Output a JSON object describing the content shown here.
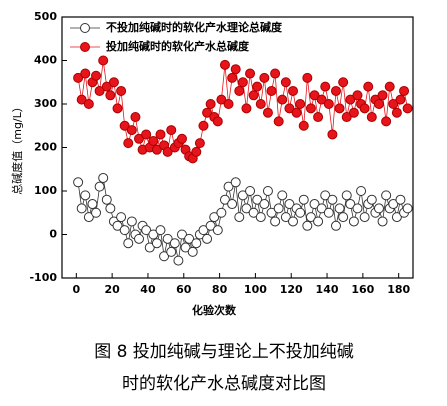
{
  "chart_data": {
    "type": "line",
    "xlabel": "化验次数",
    "ylabel": "总碱度值（mg/L）",
    "caption": [
      "图 8  投加纯碱与理论上不投加纯碱",
      "时的软化产水总碱度对比图"
    ],
    "legend": "upper left",
    "x": [
      1,
      3,
      5,
      7,
      9,
      11,
      13,
      15,
      17,
      19,
      21,
      23,
      25,
      27,
      29,
      31,
      33,
      35,
      37,
      39,
      41,
      43,
      45,
      47,
      49,
      51,
      53,
      55,
      57,
      59,
      61,
      63,
      65,
      67,
      69,
      71,
      73,
      75,
      77,
      79,
      81,
      83,
      85,
      87,
      89,
      91,
      93,
      95,
      97,
      99,
      101,
      103,
      105,
      107,
      109,
      111,
      113,
      115,
      117,
      119,
      121,
      123,
      125,
      127,
      129,
      131,
      133,
      135,
      137,
      139,
      141,
      143,
      145,
      147,
      149,
      151,
      153,
      155,
      157,
      159,
      161,
      163,
      165,
      167,
      169,
      171,
      173,
      175,
      177,
      179,
      181,
      183,
      185
    ],
    "series": [
      {
        "name": "不投加纯碱时的软化产水理论总碱度",
        "color": "#333333",
        "marker": "open",
        "values": [
          120,
          60,
          90,
          40,
          70,
          50,
          110,
          130,
          80,
          60,
          30,
          20,
          40,
          10,
          -20,
          30,
          0,
          -10,
          20,
          10,
          -30,
          0,
          -20,
          10,
          -50,
          -10,
          -40,
          -20,
          -60,
          0,
          -30,
          -10,
          -40,
          -20,
          0,
          10,
          -10,
          20,
          40,
          10,
          50,
          80,
          110,
          70,
          120,
          40,
          90,
          60,
          100,
          50,
          80,
          40,
          70,
          100,
          50,
          30,
          60,
          90,
          40,
          70,
          30,
          60,
          50,
          80,
          20,
          40,
          70,
          30,
          60,
          90,
          50,
          80,
          20,
          60,
          40,
          90,
          70,
          30,
          60,
          100,
          40,
          70,
          80,
          50,
          60,
          30,
          90,
          60,
          70,
          40,
          80,
          50,
          60
        ]
      },
      {
        "name": "投加纯碱时的软化产水总碱度",
        "color": "#e8141b",
        "marker": "filled",
        "values": [
          360,
          310,
          370,
          300,
          350,
          365,
          330,
          400,
          340,
          320,
          350,
          290,
          330,
          250,
          210,
          240,
          270,
          220,
          195,
          230,
          200,
          215,
          195,
          230,
          205,
          190,
          240,
          200,
          210,
          220,
          195,
          180,
          175,
          190,
          210,
          250,
          280,
          300,
          270,
          260,
          310,
          390,
          300,
          360,
          380,
          330,
          350,
          290,
          370,
          320,
          340,
          300,
          360,
          280,
          330,
          370,
          260,
          310,
          350,
          290,
          330,
          280,
          300,
          250,
          360,
          290,
          320,
          270,
          310,
          340,
          300,
          230,
          330,
          290,
          350,
          270,
          310,
          280,
          320,
          300,
          290,
          340,
          270,
          310,
          300,
          320,
          260,
          340,
          300,
          280,
          310,
          330,
          290
        ]
      }
    ],
    "xlim": [
      -8,
      188
    ],
    "xticks": [
      0,
      20,
      40,
      60,
      80,
      100,
      120,
      140,
      160,
      180
    ],
    "ylim": [
      -100,
      500
    ],
    "yticks": [
      -100,
      0,
      100,
      200,
      300,
      400,
      500
    ],
    "grid": false
  }
}
